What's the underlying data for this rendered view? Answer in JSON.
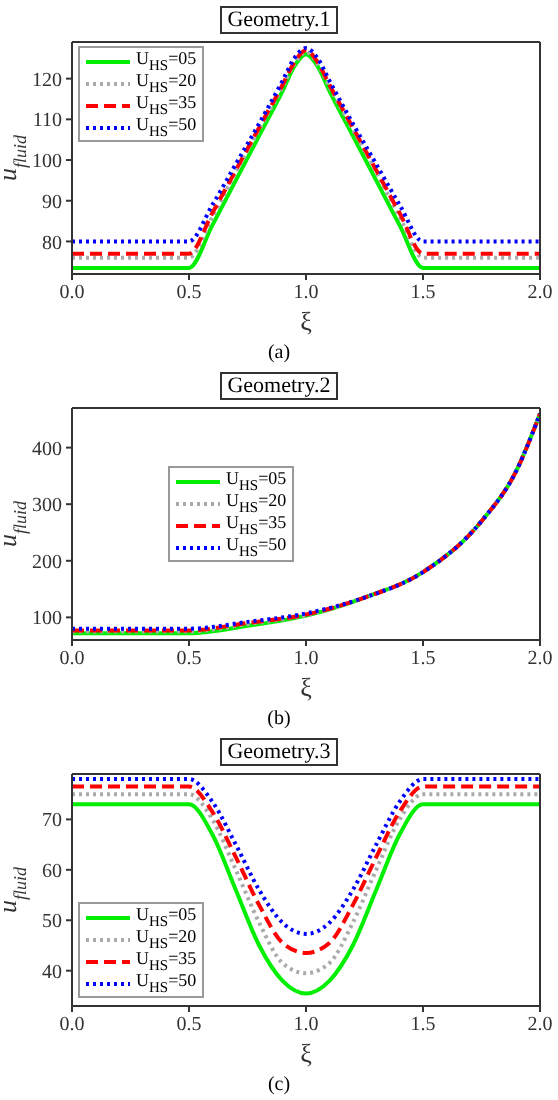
{
  "chart_data": [
    {
      "type": "line",
      "title": "Geometry.1",
      "xlabel": "ξ",
      "ylabel": "u$_{fluid}$",
      "annotations": [
        "(a)"
      ],
      "legend": "top left",
      "x": [
        0,
        0.5,
        0.6,
        0.7,
        0.8,
        0.9,
        0.95,
        1.0,
        1.05,
        1.1,
        1.2,
        1.3,
        1.4,
        1.5,
        2.0
      ],
      "xlim": [
        0,
        2
      ],
      "xticks": [
        {
          "value": 0,
          "label": "0.0"
        },
        {
          "value": 0.5,
          "label": "0.5"
        },
        {
          "value": 1,
          "label": "1.0"
        },
        {
          "value": 1.5,
          "label": "1.5"
        },
        {
          "value": 2,
          "label": "2.0"
        }
      ],
      "ylim": [
        72,
        129
      ],
      "yticks": [
        80,
        90,
        100,
        110,
        120
      ],
      "series": [
        {
          "name": "U$_{HS}$=05",
          "color": "#00ee00",
          "line_style": "solid",
          "values": [
            73.5,
            73.5,
            84,
            95,
            106,
            117,
            123,
            126,
            123,
            117,
            106,
            95,
            84,
            73.5,
            73.5
          ]
        },
        {
          "name": "U$_{HS}$=20",
          "color": "#aaaaaa",
          "line_style": "dotted",
          "values": [
            76,
            76,
            86,
            97,
            107.5,
            118,
            123.5,
            126.5,
            123.5,
            118,
            107.5,
            97,
            86,
            76,
            76
          ]
        },
        {
          "name": "U$_{HS}$=35",
          "color": "#ff0000",
          "line_style": "dashed",
          "values": [
            77,
            77,
            87,
            97.5,
            108,
            118.5,
            124,
            127,
            124,
            118.5,
            108,
            97.5,
            87,
            77,
            77
          ]
        },
        {
          "name": "U$_{HS}$=50",
          "color": "#0000ff",
          "line_style": "dotted",
          "values": [
            80,
            80,
            89,
            99,
            109,
            119.5,
            125,
            127.5,
            125,
            119.5,
            109,
            99,
            89,
            80,
            80
          ]
        }
      ]
    },
    {
      "type": "line",
      "title": "Geometry.2",
      "xlabel": "ξ",
      "ylabel": "u$_{fluid}$",
      "annotations": [
        "(b)"
      ],
      "legend": "center",
      "x": [
        0,
        0.5,
        0.75,
        1.0,
        1.25,
        1.5,
        1.75,
        1.9,
        2.0
      ],
      "xlim": [
        0,
        2
      ],
      "xticks": [
        {
          "value": 0,
          "label": "0.0"
        },
        {
          "value": 0.5,
          "label": "0.5"
        },
        {
          "value": 1,
          "label": "1.0"
        },
        {
          "value": 1.5,
          "label": "1.5"
        },
        {
          "value": 2,
          "label": "2.0"
        }
      ],
      "ylim": [
        60,
        470
      ],
      "yticks": [
        100,
        200,
        300,
        400
      ],
      "series": [
        {
          "name": "U$_{HS}$=05",
          "color": "#00ee00",
          "line_style": "solid",
          "values": [
            72,
            72,
            85,
            103,
            135,
            180,
            270,
            360,
            460
          ]
        },
        {
          "name": "U$_{HS}$=20",
          "color": "#aaaaaa",
          "line_style": "dotted",
          "values": [
            75,
            75,
            88,
            104,
            135,
            180,
            270,
            360,
            460
          ]
        },
        {
          "name": "U$_{HS}$=35",
          "color": "#ff0000",
          "line_style": "dashed",
          "values": [
            77,
            77,
            90,
            105,
            135,
            180,
            270,
            360,
            460
          ]
        },
        {
          "name": "U$_{HS}$=50",
          "color": "#0000ff",
          "line_style": "dotted",
          "values": [
            80,
            80,
            92,
            107,
            135,
            180,
            270,
            360,
            460
          ]
        }
      ]
    },
    {
      "type": "line",
      "title": "Geometry.3",
      "xlabel": "ξ",
      "ylabel": "u$_{fluid}$",
      "annotations": [
        "(c)"
      ],
      "legend": "bottom left",
      "x": [
        0,
        0.5,
        0.6,
        0.7,
        0.8,
        0.9,
        1.0,
        1.1,
        1.2,
        1.3,
        1.4,
        1.5,
        2.0
      ],
      "xlim": [
        0,
        2
      ],
      "xticks": [
        {
          "value": 0,
          "label": "0.0"
        },
        {
          "value": 0.5,
          "label": "0.5"
        },
        {
          "value": 1,
          "label": "1.0"
        },
        {
          "value": 1.5,
          "label": "1.5"
        },
        {
          "value": 2,
          "label": "2.0"
        }
      ],
      "ylim": [
        33,
        79
      ],
      "yticks": [
        40,
        50,
        60,
        70
      ],
      "series": [
        {
          "name": "U$_{HS}$=05",
          "color": "#00ee00",
          "line_style": "solid",
          "values": [
            73,
            73,
            67,
            56,
            45,
            38,
            35.5,
            38,
            45,
            56,
            67,
            73,
            73
          ]
        },
        {
          "name": "U$_{HS}$=20",
          "color": "#aaaaaa",
          "line_style": "dotted",
          "values": [
            75,
            75,
            70,
            60,
            49.5,
            41.5,
            39.5,
            41.5,
            49.5,
            60,
            70,
            75,
            75
          ]
        },
        {
          "name": "U$_{HS}$=35",
          "color": "#ff0000",
          "line_style": "dashed",
          "values": [
            76.5,
            76.5,
            71.5,
            62.5,
            53,
            45.5,
            43.5,
            45.5,
            53,
            62.5,
            71.5,
            76.5,
            76.5
          ]
        },
        {
          "name": "U$_{HS}$=50",
          "color": "#0000ff",
          "line_style": "dotted",
          "values": [
            78,
            78,
            73.5,
            65,
            56,
            49.5,
            47.3,
            49.5,
            56,
            65,
            73.5,
            78,
            78
          ]
        }
      ]
    }
  ]
}
